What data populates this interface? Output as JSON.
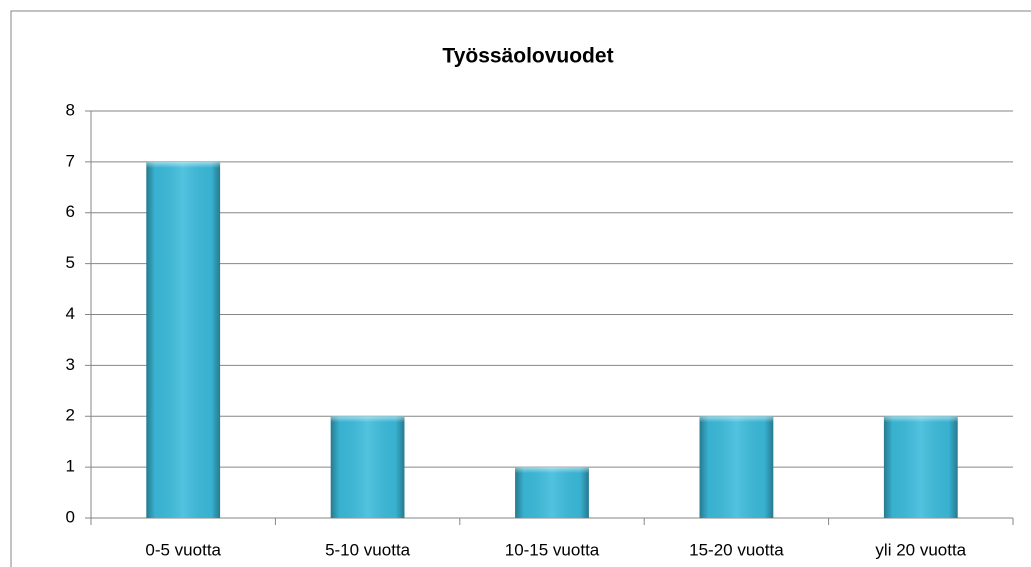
{
  "chart_data": {
    "type": "bar",
    "title": "Työssäolovuodet",
    "categories": [
      "0-5 vuotta",
      "5-10 vuotta",
      "10-15 vuotta",
      "15-20 vuotta",
      "yli 20 vuotta"
    ],
    "values": [
      7,
      2,
      1,
      2,
      2
    ],
    "color": "#3bbbdb",
    "ylim": [
      0,
      8
    ],
    "yticks": [
      0,
      1,
      2,
      3,
      4,
      5,
      6,
      7,
      8
    ],
    "grid": true
  }
}
